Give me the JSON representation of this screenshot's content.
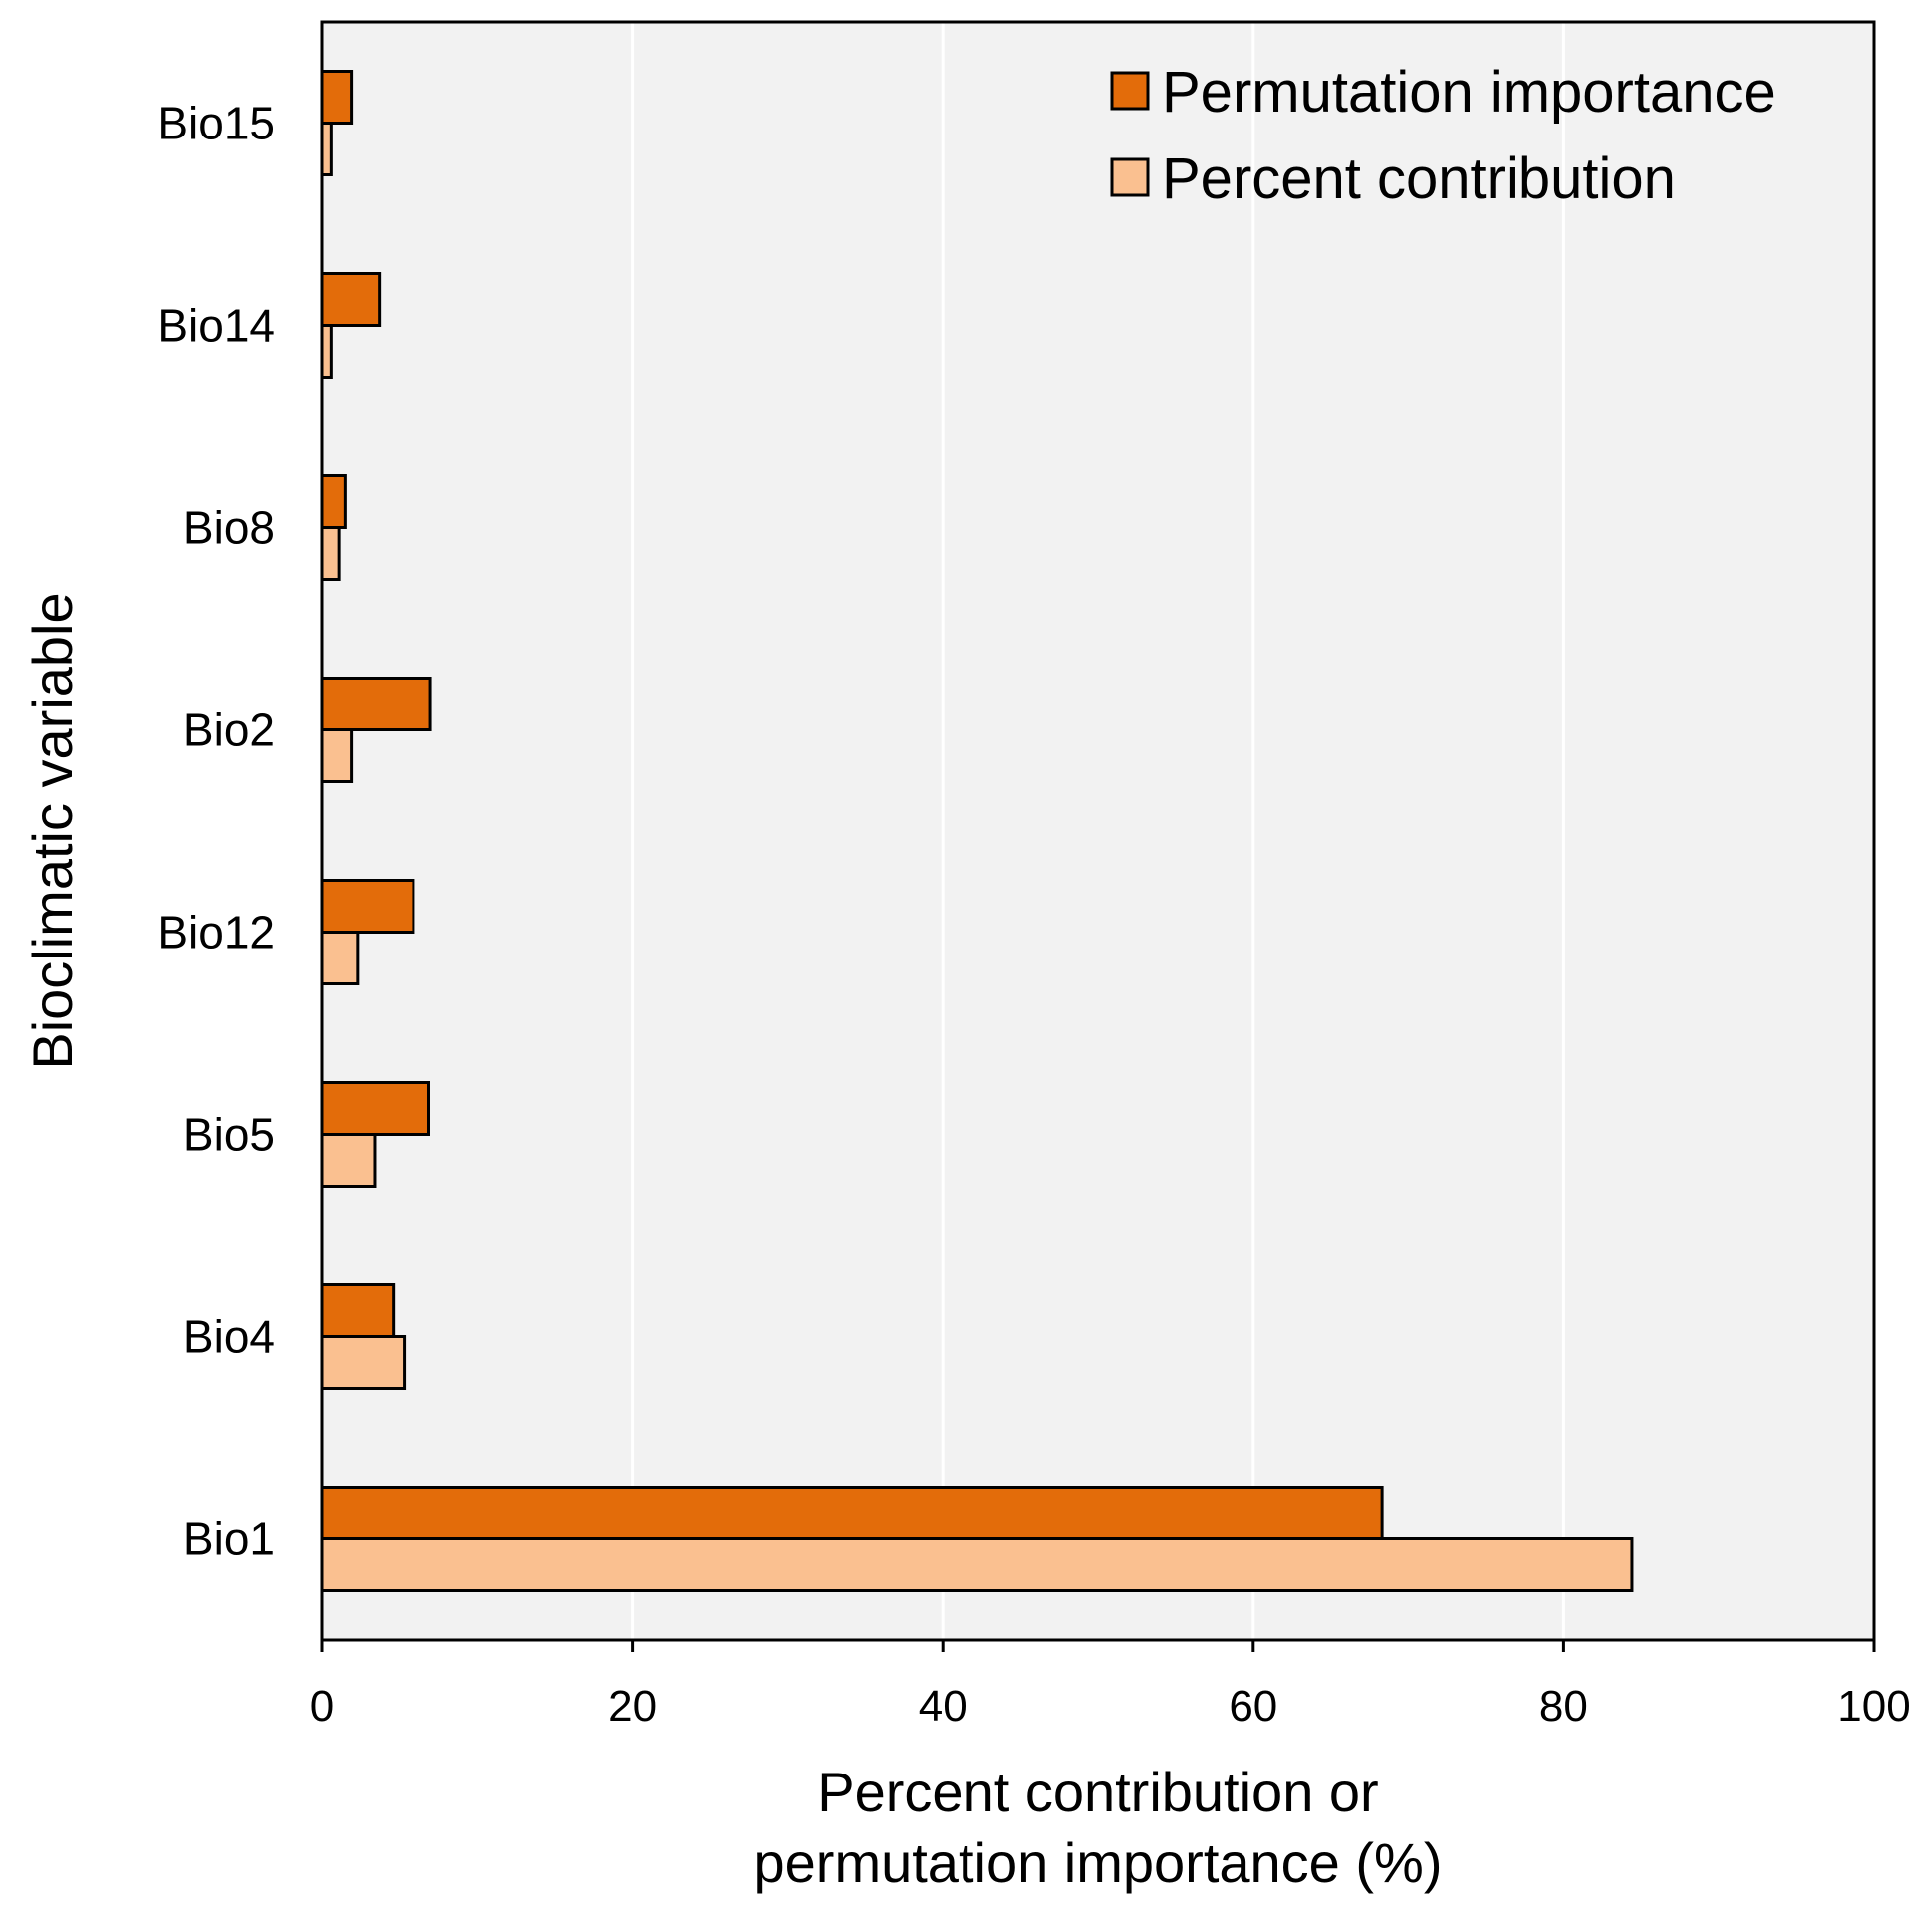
{
  "chart_data": {
    "type": "bar",
    "orientation": "horizontal",
    "title": "",
    "categories": [
      "Bio15",
      "Bio14",
      "Bio8",
      "Bio2",
      "Bio12",
      "Bio5",
      "Bio4",
      "Bio1"
    ],
    "series": [
      {
        "name": "Permutation importance",
        "color": "#E36C0A",
        "values": [
          1.9,
          3.7,
          1.5,
          7.0,
          5.9,
          6.9,
          4.6,
          68.3
        ]
      },
      {
        "name": "Percent contribution",
        "color": "#FAC090",
        "values": [
          0.6,
          0.6,
          1.1,
          1.9,
          2.3,
          3.4,
          5.3,
          84.4
        ]
      }
    ],
    "xlabel_line1": "Percent contribution or",
    "xlabel_line2": "permutation importance (%)",
    "ylabel": "Bioclimatic variable",
    "xlim": [
      0,
      100
    ],
    "xticks": [
      0,
      20,
      40,
      60,
      80,
      100
    ],
    "grid": "vertical",
    "legend_position": "top-right",
    "plot_background": "#F2F2F2",
    "bar_outline": "#000000"
  }
}
